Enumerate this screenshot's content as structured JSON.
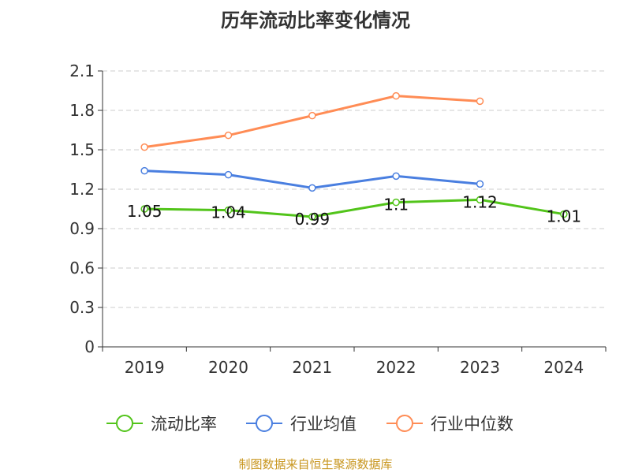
{
  "chart_data": {
    "type": "line",
    "title": "历年流动比率变化情况",
    "categories": [
      "2019",
      "2020",
      "2021",
      "2022",
      "2023",
      "2024"
    ],
    "ylim": [
      0,
      2.1
    ],
    "yticks": [
      "0",
      "0.3",
      "0.6",
      "0.9",
      "1.2",
      "1.5",
      "1.8",
      "2.1"
    ],
    "grid": true,
    "legend_position": "bottom",
    "series": [
      {
        "name": "流动比率",
        "color": "#52c41a",
        "values": [
          1.05,
          1.04,
          0.99,
          1.1,
          1.12,
          1.01
        ],
        "labels": [
          "1.05",
          "1.04",
          "0.99",
          "1.1",
          "1.12",
          "1.01"
        ]
      },
      {
        "name": "行业均值",
        "color": "#4a7fe0",
        "values": [
          1.34,
          1.31,
          1.21,
          1.3,
          1.24,
          null
        ]
      },
      {
        "name": "行业中位数",
        "color": "#ff8c55",
        "values": [
          1.52,
          1.61,
          1.76,
          1.91,
          1.87,
          null
        ]
      }
    ]
  },
  "source": "制图数据来自恒生聚源数据库"
}
